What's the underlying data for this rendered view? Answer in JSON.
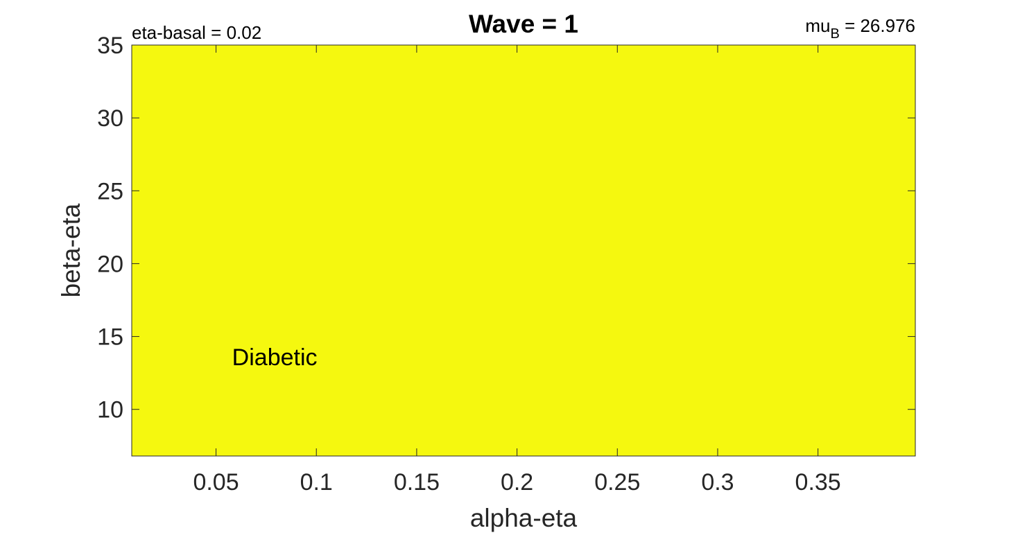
{
  "chart_data": {
    "type": "heatmap",
    "title": "Wave = 1",
    "xlabel": "alpha-eta",
    "ylabel": "beta-eta",
    "xlim": [
      0.008,
      0.3985
    ],
    "ylim": [
      6.8,
      35
    ],
    "x_ticks": [
      0.05,
      0.1,
      0.15,
      0.2,
      0.25,
      0.3,
      0.35
    ],
    "x_tick_labels": [
      "0.05",
      "0.1",
      "0.15",
      "0.2",
      "0.25",
      "0.3",
      "0.35"
    ],
    "y_ticks": [
      10,
      15,
      20,
      25,
      30,
      35
    ],
    "y_tick_labels": [
      "10",
      "15",
      "20",
      "25",
      "30",
      "35"
    ],
    "grid": false,
    "region": {
      "label": "Diabetic",
      "label_x": 0.058,
      "label_y": 13.6,
      "color": "#f5f80f",
      "x_range": [
        0.008,
        0.3985
      ],
      "y_range": [
        6.8,
        35
      ]
    },
    "annotations": {
      "left": "eta-basal = 0.02",
      "right_prefix": "mu",
      "right_subscript": "B",
      "right_suffix": " = 26.976"
    }
  }
}
